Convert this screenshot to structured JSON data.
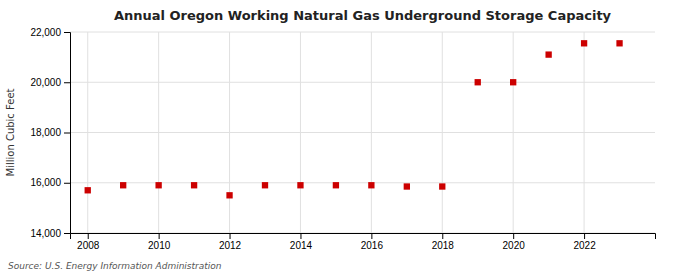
{
  "chart_data": {
    "type": "scatter",
    "title": "Annual Oregon Working Natural Gas Underground Storage Capacity",
    "ylabel": "Million Cubic Feet",
    "annotations": [
      "Source: U.S. Energy Information Administration"
    ],
    "x": [
      2008,
      2009,
      2010,
      2011,
      2012,
      2013,
      2014,
      2015,
      2016,
      2017,
      2018,
      2019,
      2020,
      2021,
      2022,
      2023
    ],
    "values": [
      15700,
      15900,
      15900,
      15900,
      15500,
      15900,
      15900,
      15900,
      15900,
      15850,
      15850,
      20000,
      20000,
      21100,
      21550,
      21550
    ],
    "color": "#cc0000",
    "marker": "square",
    "grid": true,
    "xlim": [
      2007.5,
      2024.0
    ],
    "xticks": [
      2008,
      2010,
      2012,
      2014,
      2016,
      2018,
      2020,
      2022
    ],
    "ylim": [
      14000,
      22000
    ],
    "yticks": [
      {
        "value": 14000,
        "label": "14,000"
      },
      {
        "value": 16000,
        "label": "16,000"
      },
      {
        "value": 18000,
        "label": "18,000"
      },
      {
        "value": 20000,
        "label": "20,000"
      },
      {
        "value": 22000,
        "label": "22,000"
      }
    ]
  }
}
